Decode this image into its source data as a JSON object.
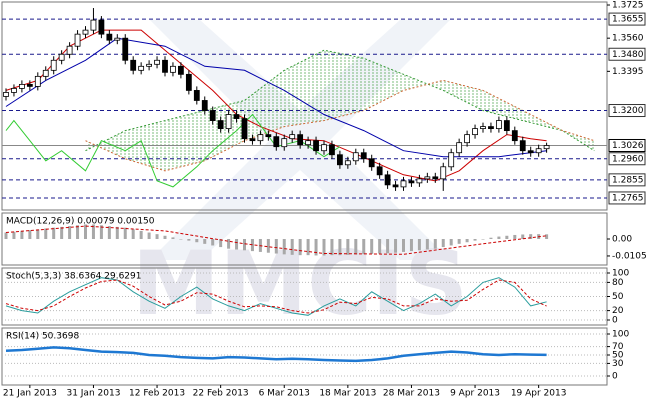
{
  "chart_data": [
    {
      "type": "candlestick",
      "ylim": [
        1.2705,
        1.374
      ],
      "yticks": [
        1.3725,
        {
          "value": 1.356,
          "label": "1.3560"
        },
        1.3395
      ],
      "levels": [
        1.3655,
        {
          "value": 1.348,
          "label": "1.3480"
        },
        {
          "value": 1.32,
          "label": "1.3200"
        },
        {
          "value": 1.296,
          "label": "1.2960"
        },
        1.2855,
        1.2765
      ],
      "last_price": 1.3026,
      "open": [
        1.327,
        1.329,
        1.331,
        1.333,
        1.332,
        1.337,
        1.34,
        1.345,
        1.348,
        1.352,
        1.358,
        1.36,
        1.365,
        1.358,
        1.355,
        1.356,
        1.345,
        1.34,
        1.342,
        1.343,
        1.345,
        1.339,
        1.342,
        1.338,
        1.33,
        1.325,
        1.32,
        1.315,
        1.311,
        1.318,
        1.316,
        1.306,
        1.305,
        1.308,
        1.307,
        1.302,
        1.306,
        1.308,
        1.303,
        1.305,
        1.3,
        1.303,
        1.298,
        1.293,
        1.295,
        1.299,
        1.296,
        1.292,
        1.288,
        1.283,
        1.282,
        1.285,
        1.284,
        1.286,
        1.287,
        1.286,
        1.292,
        1.299,
        1.304,
        1.308,
        1.311,
        1.312,
        1.311,
        1.315,
        1.31,
        1.305,
        1.3,
        1.299,
        1.301
      ],
      "high": [
        1.331,
        1.333,
        1.335,
        1.335,
        1.339,
        1.342,
        1.347,
        1.35,
        1.354,
        1.36,
        1.362,
        1.371,
        1.367,
        1.36,
        1.358,
        1.358,
        1.347,
        1.344,
        1.345,
        1.347,
        1.347,
        1.344,
        1.344,
        1.34,
        1.332,
        1.327,
        1.322,
        1.317,
        1.32,
        1.32,
        1.318,
        1.308,
        1.31,
        1.31,
        1.309,
        1.308,
        1.31,
        1.31,
        1.307,
        1.307,
        1.305,
        1.305,
        1.3,
        1.297,
        1.301,
        1.301,
        1.298,
        1.294,
        1.29,
        1.285,
        1.287,
        1.287,
        1.288,
        1.289,
        1.289,
        1.294,
        1.301,
        1.306,
        1.31,
        1.313,
        1.314,
        1.314,
        1.317,
        1.317,
        1.312,
        1.307,
        1.302,
        1.303,
        1.304
      ],
      "low": [
        1.325,
        1.327,
        1.329,
        1.33,
        1.33,
        1.335,
        1.338,
        1.343,
        1.346,
        1.35,
        1.356,
        1.358,
        1.356,
        1.353,
        1.353,
        1.343,
        1.338,
        1.338,
        1.34,
        1.341,
        1.337,
        1.337,
        1.336,
        1.328,
        1.323,
        1.318,
        1.313,
        1.309,
        1.309,
        1.314,
        1.304,
        1.303,
        1.303,
        1.305,
        1.3,
        1.3,
        1.304,
        1.301,
        1.301,
        1.298,
        1.298,
        1.296,
        1.291,
        1.291,
        1.293,
        1.294,
        1.29,
        1.286,
        1.281,
        1.28,
        1.28,
        1.282,
        1.282,
        1.284,
        1.284,
        1.28,
        1.29,
        1.297,
        1.302,
        1.306,
        1.309,
        1.309,
        1.309,
        1.308,
        1.303,
        1.298,
        1.297,
        1.297,
        1.299
      ],
      "close": [
        1.329,
        1.331,
        1.333,
        1.332,
        1.337,
        1.34,
        1.345,
        1.348,
        1.352,
        1.358,
        1.36,
        1.365,
        1.358,
        1.355,
        1.356,
        1.345,
        1.34,
        1.342,
        1.343,
        1.345,
        1.339,
        1.342,
        1.338,
        1.33,
        1.325,
        1.32,
        1.315,
        1.311,
        1.318,
        1.316,
        1.306,
        1.305,
        1.308,
        1.307,
        1.302,
        1.306,
        1.308,
        1.303,
        1.305,
        1.3,
        1.303,
        1.298,
        1.293,
        1.295,
        1.299,
        1.296,
        1.292,
        1.288,
        1.283,
        1.282,
        1.285,
        1.284,
        1.286,
        1.287,
        1.286,
        1.292,
        1.299,
        1.304,
        1.308,
        1.311,
        1.312,
        1.311,
        1.315,
        1.31,
        1.305,
        1.3,
        1.299,
        1.301,
        1.3026
      ],
      "cloud": {
        "x": [
          10,
          15,
          20,
          25,
          30,
          35,
          40,
          45,
          50,
          55,
          60,
          65,
          70,
          74
        ],
        "span_a": [
          1.3,
          1.31,
          1.315,
          1.32,
          1.325,
          1.34,
          1.35,
          1.346,
          1.338,
          1.33,
          1.32,
          1.315,
          1.31,
          1.3
        ],
        "span_b": [
          1.305,
          1.296,
          1.29,
          1.295,
          1.305,
          1.312,
          1.315,
          1.32,
          1.33,
          1.335,
          1.33,
          1.32,
          1.31,
          1.305
        ],
        "color": "#339933",
        "color_b": "#cc6633"
      },
      "series": [
        {
          "color": "#cc0000",
          "x": [
            0,
            4,
            8,
            12,
            17,
            20,
            23,
            26,
            29,
            32,
            36,
            40,
            43,
            46,
            50,
            54,
            57,
            60,
            63,
            66,
            68
          ],
          "values": [
            1.33,
            1.335,
            1.352,
            1.36,
            1.36,
            1.35,
            1.34,
            1.33,
            1.318,
            1.312,
            1.306,
            1.305,
            1.3,
            1.295,
            1.288,
            1.285,
            1.29,
            1.3,
            1.308,
            1.306,
            1.305
          ]
        },
        {
          "color": "#0000aa",
          "x": [
            0,
            5,
            10,
            14,
            20,
            25,
            30,
            35,
            40,
            45,
            50,
            55,
            62,
            68
          ],
          "values": [
            1.322,
            1.335,
            1.345,
            1.356,
            1.352,
            1.342,
            1.34,
            1.33,
            1.318,
            1.31,
            1.3,
            1.297,
            1.297,
            1.3
          ]
        },
        {
          "color": "#33cc33",
          "x": [
            0,
            1,
            3,
            5,
            7,
            10,
            12,
            15,
            17,
            19,
            21,
            24,
            26,
            29,
            31,
            34,
            37,
            40,
            42
          ],
          "values": [
            1.31,
            1.315,
            1.305,
            1.295,
            1.3,
            1.29,
            1.305,
            1.3,
            1.305,
            1.285,
            1.282,
            1.292,
            1.3,
            1.31,
            1.318,
            1.302,
            1.305,
            1.297,
            1.302
          ]
        }
      ],
      "watermark": "MMCIS"
    },
    {
      "type": "macd",
      "title": "MACD(12,26,9) 0.00079 0.00150",
      "ylim": [
        -0.0161,
        0.0161
      ],
      "yticks": [
        {
          "value": 0,
          "label": "0.00"
        },
        -0.0105
      ],
      "values": [
        0.004,
        0.0045,
        0.005,
        0.0055,
        0.006,
        0.0065,
        0.007,
        0.0075,
        0.008,
        0.0085,
        0.009,
        0.009,
        0.0085,
        0.008,
        0.0075,
        0.007,
        0.006,
        0.005,
        0.004,
        0.003,
        0.002,
        0.001,
        0,
        -0.001,
        -0.002,
        -0.003,
        -0.004,
        -0.005,
        -0.006,
        -0.0065,
        -0.007,
        -0.0075,
        -0.008,
        -0.0085,
        -0.009,
        -0.0095,
        -0.0098,
        -0.01,
        -0.01,
        -0.0102,
        -0.0102,
        -0.01,
        -0.01,
        -0.0098,
        -0.0096,
        -0.0094,
        -0.0092,
        -0.009,
        -0.0088,
        -0.0085,
        -0.008,
        -0.0075,
        -0.007,
        -0.0065,
        -0.006,
        -0.005,
        -0.004,
        -0.003,
        -0.002,
        -0.001,
        0,
        0.0008,
        0.0015,
        0.002,
        0.0025,
        0.0028,
        0.003,
        0.003,
        0.0029
      ],
      "color": "#a8a8a8",
      "series": [
        {
          "color": "#cc0000",
          "x": [
            0,
            10,
            20,
            30,
            40,
            50,
            60,
            68
          ],
          "values": [
            0.004,
            0.008,
            0.005,
            -0.003,
            -0.009,
            -0.0095,
            -0.003,
            0.002
          ]
        }
      ]
    },
    {
      "type": "line",
      "title": "Stoch(5,3,3) 38.6364 29.6291",
      "ylim": [
        -10.6,
        110.6
      ],
      "yticks": [
        100,
        80,
        50,
        20,
        0
      ],
      "grid": true,
      "series": [
        {
          "color": "#2a9d9d",
          "x": [
            0,
            2,
            4,
            6,
            8,
            10,
            12,
            14,
            16,
            18,
            20,
            22,
            24,
            26,
            28,
            30,
            32,
            34,
            36,
            38,
            40,
            42,
            44,
            46,
            48,
            50,
            52,
            54,
            56,
            58,
            60,
            62,
            64,
            66,
            68
          ],
          "values": [
            30,
            20,
            15,
            40,
            60,
            75,
            90,
            85,
            60,
            40,
            25,
            50,
            70,
            45,
            30,
            20,
            35,
            25,
            15,
            10,
            30,
            45,
            30,
            60,
            40,
            20,
            35,
            55,
            30,
            50,
            80,
            90,
            70,
            30,
            38.6364
          ]
        },
        {
          "color": "#cc0000",
          "dashed": true,
          "x": [
            0,
            2,
            4,
            6,
            8,
            10,
            12,
            14,
            16,
            18,
            20,
            22,
            24,
            26,
            28,
            30,
            32,
            34,
            36,
            38,
            40,
            42,
            44,
            46,
            48,
            50,
            52,
            54,
            56,
            58,
            60,
            62,
            64,
            66,
            68
          ],
          "values": [
            35,
            25,
            20,
            30,
            50,
            68,
            82,
            85,
            72,
            50,
            32,
            40,
            58,
            55,
            40,
            28,
            30,
            28,
            20,
            15,
            22,
            38,
            35,
            48,
            45,
            30,
            30,
            45,
            40,
            42,
            65,
            85,
            80,
            45,
            29.6291
          ]
        }
      ]
    },
    {
      "type": "line",
      "title": "RSI(14) 50.3698",
      "ylim": [
        -21.4,
        114.3
      ],
      "yticks": [
        100,
        70,
        50,
        30,
        0
      ],
      "grid": true,
      "series": [
        {
          "color": "#1e78d2",
          "width": 2.5,
          "x": [
            0,
            2,
            4,
            6,
            8,
            10,
            12,
            14,
            16,
            18,
            20,
            22,
            24,
            26,
            28,
            30,
            32,
            34,
            36,
            38,
            40,
            42,
            44,
            46,
            48,
            50,
            52,
            54,
            56,
            58,
            60,
            62,
            64,
            66,
            68
          ],
          "values": [
            60,
            62,
            65,
            68,
            66,
            62,
            58,
            57,
            55,
            50,
            48,
            45,
            43,
            42,
            45,
            44,
            42,
            40,
            41,
            40,
            38,
            37,
            36,
            38,
            42,
            48,
            52,
            55,
            58,
            56,
            52,
            50,
            52,
            51,
            50.3698
          ]
        }
      ],
      "xticks": [
        {
          "value": 3,
          "label": "21 Jan 2013"
        },
        {
          "value": 11,
          "label": "31 Jan 2013"
        },
        {
          "value": 19,
          "label": "12 Feb 2013"
        },
        {
          "value": 27,
          "label": "22 Feb 2013"
        },
        {
          "value": 35,
          "label": "6 Mar 2013"
        },
        {
          "value": 43,
          "label": "18 Mar 2013"
        },
        {
          "value": 51,
          "label": "28 Mar 2013"
        },
        {
          "value": 59,
          "label": "9 Apr 2013"
        },
        {
          "value": 67,
          "label": "19 Apr 2013"
        }
      ]
    }
  ]
}
